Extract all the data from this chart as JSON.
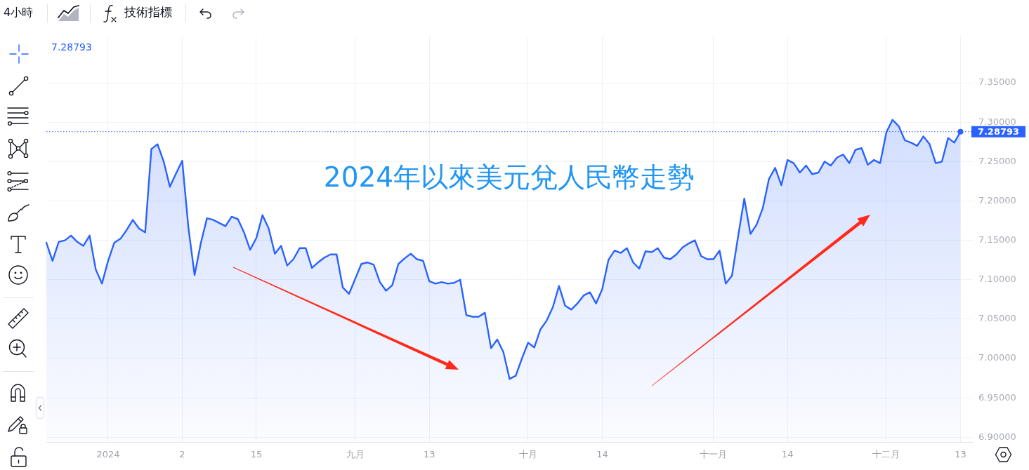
{
  "chart_data": {
    "type": "area",
    "title": "2024年以來美元兌人民幣走勢",
    "categories": [
      null,
      null,
      null,
      null,
      null,
      null,
      null,
      null,
      null,
      null,
      "2024",
      null,
      null,
      null,
      null,
      null,
      null,
      null,
      null,
      null,
      null,
      null,
      "2",
      null,
      null,
      null,
      null,
      null,
      null,
      null,
      null,
      null,
      null,
      null,
      "15",
      null,
      null,
      null,
      null,
      null,
      null,
      null,
      null,
      null,
      null,
      null,
      null,
      null,
      null,
      null,
      "九月",
      null,
      null,
      null,
      null,
      null,
      null,
      null,
      null,
      null,
      null,
      null,
      "13",
      null,
      null,
      null,
      null,
      null,
      null,
      null,
      null,
      null,
      null,
      null,
      null,
      null,
      null,
      null,
      "十月",
      null,
      null,
      null,
      null,
      null,
      null,
      null,
      null,
      null,
      null,
      null,
      "14",
      null,
      null,
      null,
      null,
      null,
      null,
      null,
      null,
      null,
      null,
      null,
      null,
      null,
      null,
      null,
      null,
      null,
      "十一月",
      null,
      null,
      null,
      null,
      null,
      null,
      null,
      null,
      null,
      null,
      null,
      "14",
      null,
      null,
      null,
      null,
      null,
      null,
      null,
      null,
      null,
      null,
      null,
      null,
      null,
      null,
      null,
      "十二月",
      null,
      null,
      null,
      null,
      null,
      null,
      null,
      null,
      null,
      null,
      null,
      "13",
      null,
      null
    ],
    "values": [
      7.147,
      7.124,
      7.148,
      7.15,
      7.156,
      7.148,
      7.143,
      7.156,
      7.113,
      7.095,
      7.124,
      7.147,
      7.152,
      7.163,
      7.176,
      7.165,
      7.16,
      7.266,
      7.272,
      7.25,
      7.218,
      7.235,
      7.251,
      7.166,
      7.106,
      7.146,
      7.178,
      7.176,
      7.172,
      7.168,
      7.18,
      7.177,
      7.16,
      7.138,
      7.153,
      7.182,
      7.165,
      7.133,
      7.143,
      7.118,
      7.126,
      7.14,
      7.14,
      7.115,
      7.122,
      7.128,
      7.132,
      7.132,
      7.09,
      7.082,
      7.101,
      7.12,
      7.122,
      7.119,
      7.097,
      7.086,
      7.093,
      7.12,
      7.127,
      7.133,
      7.126,
      7.124,
      7.098,
      7.095,
      7.097,
      7.095,
      7.096,
      7.1,
      7.055,
      7.053,
      7.053,
      7.058,
      7.013,
      7.024,
      7.008,
      6.974,
      6.978,
      7.0,
      7.02,
      7.014,
      7.037,
      7.048,
      7.065,
      7.092,
      7.067,
      7.062,
      7.07,
      7.08,
      7.084,
      7.07,
      7.088,
      7.125,
      7.137,
      7.134,
      7.14,
      7.122,
      7.114,
      7.136,
      7.135,
      7.14,
      7.128,
      7.126,
      7.132,
      7.141,
      7.146,
      7.15,
      7.13,
      7.126,
      7.126,
      7.137,
      7.095,
      7.105,
      7.155,
      7.203,
      7.158,
      7.17,
      7.191,
      7.228,
      7.242,
      7.22,
      7.252,
      7.248,
      7.236,
      7.245,
      7.234,
      7.236,
      7.25,
      7.245,
      7.255,
      7.259,
      7.248,
      7.265,
      7.267,
      7.246,
      7.252,
      7.248,
      7.287,
      7.303,
      7.295,
      7.277,
      7.274,
      7.27,
      7.282,
      7.272,
      7.248,
      7.25,
      7.28,
      7.274,
      7.28793,
      null,
      null
    ],
    "color": "#2962ff",
    "ylim": [
      6.894,
      7.409
    ],
    "yticks": [
      {
        "value": 6.9,
        "label": "6.90000"
      },
      {
        "value": 6.95,
        "label": "6.95000"
      },
      {
        "value": 7.0,
        "label": "7.00000"
      },
      {
        "value": 7.05,
        "label": "7.05000"
      },
      {
        "value": 7.1,
        "label": "7.10000"
      },
      {
        "value": 7.15,
        "label": "7.15000"
      },
      {
        "value": 7.2,
        "label": "7.20000"
      },
      {
        "value": 7.25,
        "label": "7.25000"
      },
      {
        "value": 7.3,
        "label": "7.30000"
      },
      {
        "value": 7.35,
        "label": "7.35000"
      }
    ],
    "grid": true,
    "ref_lines": [
      {
        "axis": "y",
        "value": 7.28793,
        "label": "7.28793",
        "color": "#2962ff",
        "line_style": "dotted"
      }
    ],
    "annotations": [
      "4小時",
      "技術指標",
      "7.28793"
    ]
  }
}
